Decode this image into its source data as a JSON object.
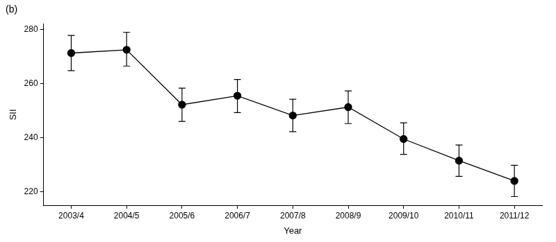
{
  "chart_data": {
    "type": "line",
    "title": "(b)",
    "x_label": "Year",
    "y_label": "SII",
    "categories": [
      "2003/4",
      "2004/5",
      "2005/6",
      "2006/7",
      "2007/8",
      "2008/9",
      "2009/10",
      "2010/11",
      "2011/12"
    ],
    "values": [
      271.3,
      272.5,
      252.2,
      255.5,
      248.2,
      251.3,
      239.5,
      231.5,
      224.0
    ],
    "error_low": [
      264.8,
      266.5,
      246.0,
      249.3,
      242.2,
      245.2,
      233.8,
      225.7,
      218.2
    ],
    "error_high": [
      277.8,
      279.0,
      258.3,
      261.5,
      254.2,
      257.3,
      245.5,
      237.3,
      229.8
    ],
    "color": "#000000",
    "marker": "circle",
    "line_style": "solid",
    "ylim": [
      215,
      282
    ],
    "yticks": [
      220,
      240,
      260,
      280
    ],
    "grid": false
  }
}
